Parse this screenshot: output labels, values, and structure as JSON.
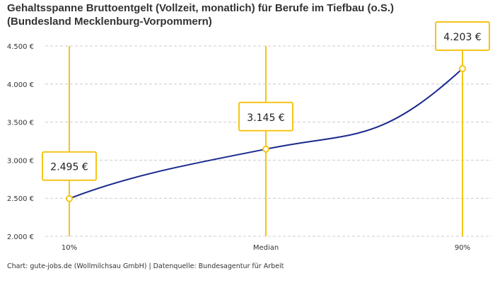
{
  "title_line1": "Gehaltsspanne Bruttoentgelt (Vollzeit, monatlich) für Berufe im Tiefbau (o.S.)",
  "title_line2": "(Bundesland Mecklenburg-Vorpommern)",
  "footer": "Chart: gute-jobs.de (Wollmilchsau GmbH) | Datenquelle: Bundesagentur für Arbeit",
  "chart_data": {
    "type": "line",
    "categories": [
      "10%",
      "Median",
      "90%"
    ],
    "values": [
      2495,
      3145,
      4203
    ],
    "data_labels": [
      "2.495 €",
      "3.145 €",
      "4.203 €"
    ],
    "ylim": [
      2000,
      4500
    ],
    "yticks": [
      2000,
      2500,
      3000,
      3500,
      4000,
      4500
    ],
    "ytick_labels": [
      "2.000 €",
      "2.500 €",
      "3.000 €",
      "3.500 €",
      "4.000 €",
      "4.500 €"
    ],
    "grid": true,
    "colors": {
      "line": "#1a2a8c",
      "marker": "#f5c518",
      "grid": "#cccccc"
    }
  }
}
